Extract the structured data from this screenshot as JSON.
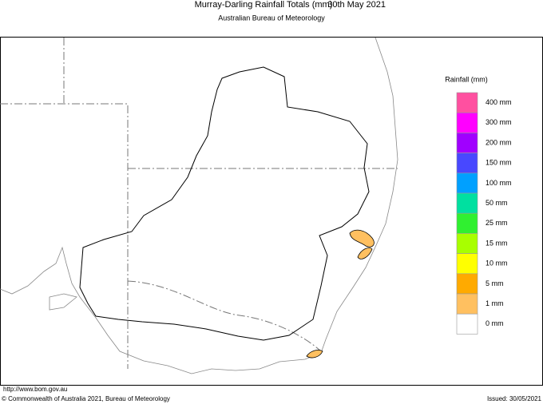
{
  "header": {
    "title": "Murray-Darling Rainfall Totals (mm)",
    "date": "30th May 2021",
    "subtitle": "Australian Bureau of Meteorology"
  },
  "legend": {
    "title": "Rainfall (mm)",
    "items": [
      {
        "label": "400 mm",
        "color": "#ff50a0"
      },
      {
        "label": "300 mm",
        "color": "#ff00ff"
      },
      {
        "label": "200 mm",
        "color": "#a000ff"
      },
      {
        "label": "150 mm",
        "color": "#4848ff"
      },
      {
        "label": "100 mm",
        "color": "#00a0ff"
      },
      {
        "label": "50 mm",
        "color": "#00e0a0"
      },
      {
        "label": "25 mm",
        "color": "#30f030"
      },
      {
        "label": "15 mm",
        "color": "#a8ff00"
      },
      {
        "label": "10 mm",
        "color": "#ffff00"
      },
      {
        "label": "5 mm",
        "color": "#ffaa00"
      },
      {
        "label": "1 mm",
        "color": "#ffc060"
      },
      {
        "label": "0 mm",
        "color": "#ffffff"
      }
    ]
  },
  "footer": {
    "url": "http://www.bom.gov.au",
    "copyright": "© Commonwealth of Australia 2021, Bureau of Meteorology",
    "issued": "Issued: 30/05/2021"
  }
}
